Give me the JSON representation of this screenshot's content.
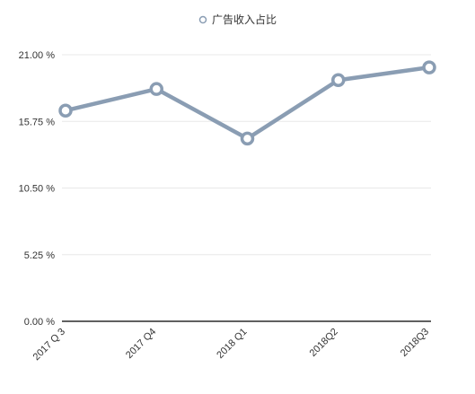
{
  "chart_data": {
    "type": "line",
    "categories": [
      "2017 Q 3",
      "2017 Q4",
      "2018 Q1",
      "2018Q2",
      "2018Q3"
    ],
    "series": [
      {
        "name": "广告收入占比",
        "values": [
          16.6,
          18.3,
          14.4,
          19.0,
          20.0
        ]
      }
    ],
    "yticks": [
      "0.00 %",
      "5.25 %",
      "10.50 %",
      "15.75 %",
      "21.00 %"
    ],
    "ylim": [
      0,
      21
    ],
    "grid": true,
    "legend": "top-center",
    "title": "",
    "xlabel": "",
    "ylabel": "",
    "colors": {
      "series": "#8a9db3",
      "grid": "#e8e8e8",
      "axis": "#000000"
    }
  }
}
